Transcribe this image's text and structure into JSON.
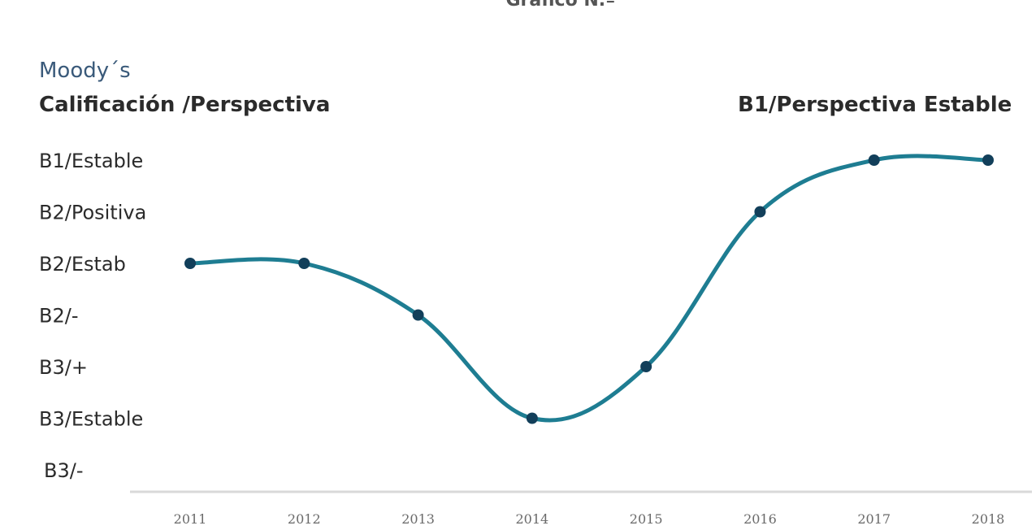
{
  "header": {
    "top_title": "Gráfico N.º",
    "brand": "Moody´s",
    "ylabel": "Calificación /Perspectiva",
    "annotation": "B1/Perspectiva Estable"
  },
  "chart_data": {
    "type": "line",
    "title": "",
    "xlabel": "",
    "ylabel": "Calificación /Perspectiva",
    "x": [
      "2011",
      "2012",
      "2013",
      "2014",
      "2015",
      "2016",
      "2017",
      "2018"
    ],
    "y_categories": [
      "B3/-",
      "B3/Estable",
      "B3/+",
      "B2/-",
      "B2/Estab",
      "B2/Positiva",
      "B1/Estable"
    ],
    "series": [
      {
        "values": [
          "B2/Estab",
          "B2/Estab",
          "B2/-",
          "B3/Estable",
          "B3/+",
          "B2/Positiva",
          "B1/Estable",
          "B1/Estable"
        ]
      }
    ],
    "annotations": [
      "B1/Perspectiva Estable"
    ],
    "line_color": "#1e7d92",
    "marker_color": "#123f5a",
    "grid": false,
    "legend": "none"
  }
}
